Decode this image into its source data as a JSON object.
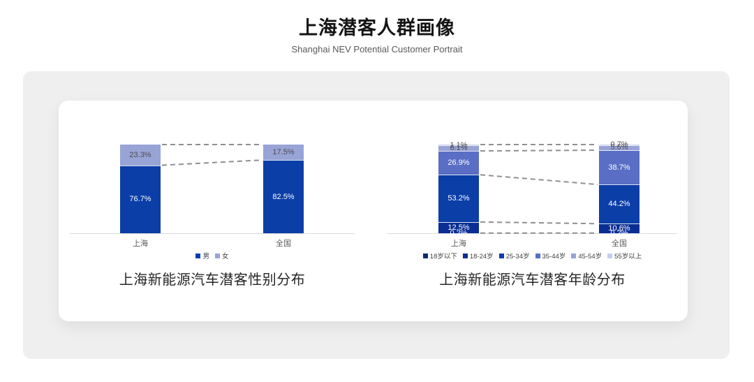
{
  "header": {
    "title": "上海潜客人群画像",
    "subtitle": "Shanghai NEV Potential Customer Portrait"
  },
  "colors": {
    "panel_bg": "#efefef",
    "card_bg": "#ffffff",
    "axis": "#d9d9d9",
    "connector": "#8f8f8f"
  },
  "chart_data": [
    {
      "type": "bar",
      "subtype": "stacked-100-percent-column",
      "title": "上海新能源汽车潜客性别分布",
      "categories": [
        "上海",
        "全国"
      ],
      "series": [
        {
          "name": "男",
          "color": "#0C3EA8",
          "values": [
            76.7,
            82.5
          ]
        },
        {
          "name": "女",
          "color": "#98A3D6",
          "values": [
            23.3,
            17.5
          ]
        }
      ],
      "value_suffix": "%",
      "ylim": [
        0,
        100
      ],
      "grid": false,
      "legend_position": "bottom",
      "connector_boundaries": [
        1,
        2
      ]
    },
    {
      "type": "bar",
      "subtype": "stacked-100-percent-column",
      "title": "上海新能源汽车潜客年龄分布",
      "categories": [
        "上海",
        "全国"
      ],
      "series": [
        {
          "name": "18岁以下",
          "color": "#122A70",
          "values": [
            0.2,
            0.2
          ]
        },
        {
          "name": "18-24岁",
          "color": "#0A2E93",
          "values": [
            12.5,
            10.6
          ]
        },
        {
          "name": "25-34岁",
          "color": "#0C3EA8",
          "values": [
            53.2,
            44.2
          ]
        },
        {
          "name": "35-44岁",
          "color": "#5A6EC5",
          "values": [
            26.9,
            38.7
          ]
        },
        {
          "name": "45-54岁",
          "color": "#98A3D6",
          "values": [
            6.1,
            5.6
          ]
        },
        {
          "name": "55岁以上",
          "color": "#C8CEE9",
          "values": [
            1.1,
            0.7
          ]
        }
      ],
      "value_suffix": "%",
      "ylim": [
        0,
        100
      ],
      "grid": false,
      "legend_position": "bottom",
      "connector_boundaries": [
        1,
        2,
        3,
        4,
        6
      ]
    }
  ]
}
